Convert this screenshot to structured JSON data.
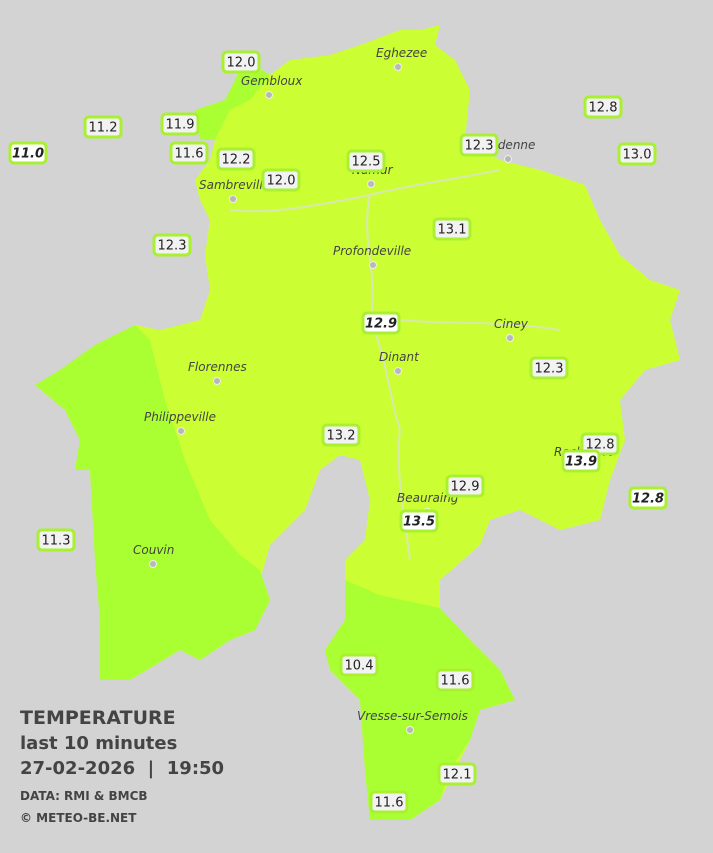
{
  "map": {
    "stations": [
      "12.0",
      "11.2",
      "11.9",
      "11.0",
      "11.6",
      "12.2",
      "12.0",
      "12.5",
      "12.3",
      "12.8",
      "13.0",
      "13.1",
      "12.3",
      "12.9",
      "12.3",
      "13.2",
      "12.8",
      "13.9",
      "12.9",
      "12.8",
      "13.5",
      "11.3",
      "10.4",
      "11.6",
      "12.1",
      "11.6"
    ],
    "cities": [
      "Eghezee",
      "Gembloux",
      "Andenne",
      "Namur",
      "Sambreville",
      "Profondeville",
      "Ciney",
      "Dinant",
      "Florennes",
      "Philippeville",
      "Rochefort",
      "Beauraing",
      "Couvin",
      "Vresse-sur-Semois"
    ]
  },
  "caption": {
    "title": "TEMPERATURE",
    "subtitle": "last 10 minutes",
    "datetime": "27-02-2026  |  19:50",
    "source": "DATA: RMI & BMCB",
    "credit": "© METEO-BE.NET"
  }
}
